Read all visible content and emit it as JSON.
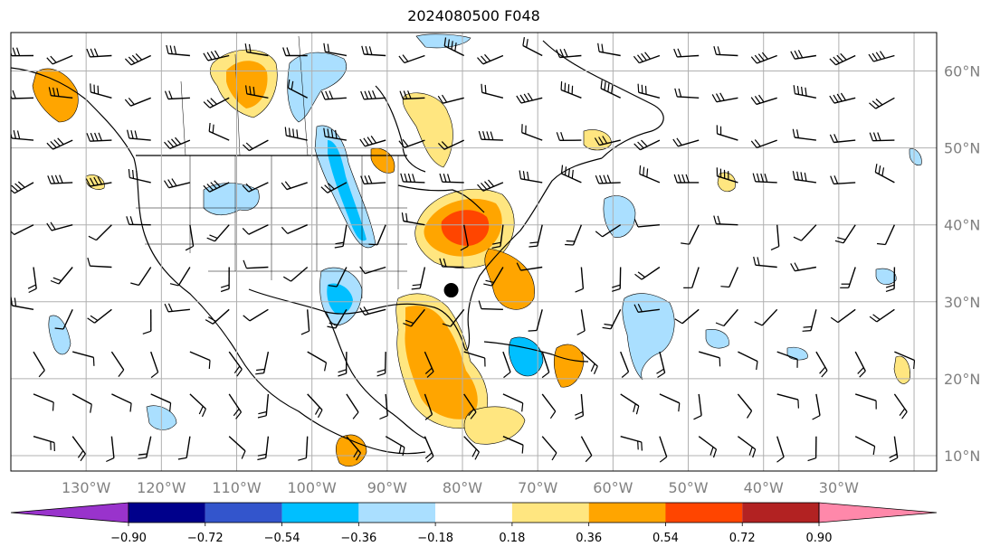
{
  "title": "2024080500 F048",
  "map": {
    "type": "filled-contour map with wind barbs",
    "region": "North America / North Atlantic",
    "lon_range": [
      -140,
      -17
    ],
    "lat_range": [
      8,
      65
    ],
    "grid_step_deg": 10,
    "lon_labels": [
      "130°W",
      "120°W",
      "110°W",
      "100°W",
      "90°W",
      "80°W",
      "70°W",
      "60°W",
      "50°W",
      "40°W",
      "30°W"
    ],
    "lat_labels": [
      "60°N",
      "50°N",
      "40°N",
      "30°N",
      "20°N",
      "10°N"
    ],
    "storm_marker": {
      "lon": -81.5,
      "lat": 31.5
    },
    "colors": {
      "grid": "#b0b0b0",
      "coast": "#000000",
      "barb": "#000000",
      "tick_label": "#808080"
    }
  },
  "colorbar": {
    "ticks": [
      "−0.90",
      "−0.72",
      "−0.54",
      "−0.36",
      "−0.18",
      "0.18",
      "0.36",
      "0.54",
      "0.72",
      "0.90"
    ],
    "levels": [
      {
        "color": "#9933cc"
      },
      {
        "color": "#00008b"
      },
      {
        "color": "#3355cc"
      },
      {
        "color": "#00bfff"
      },
      {
        "color": "#aadfff"
      },
      {
        "color": "#ffffff"
      },
      {
        "color": "#ffe680"
      },
      {
        "color": "#ffa500"
      },
      {
        "color": "#ff4500"
      },
      {
        "color": "#b22222"
      },
      {
        "color": "#ff88aa"
      }
    ]
  }
}
